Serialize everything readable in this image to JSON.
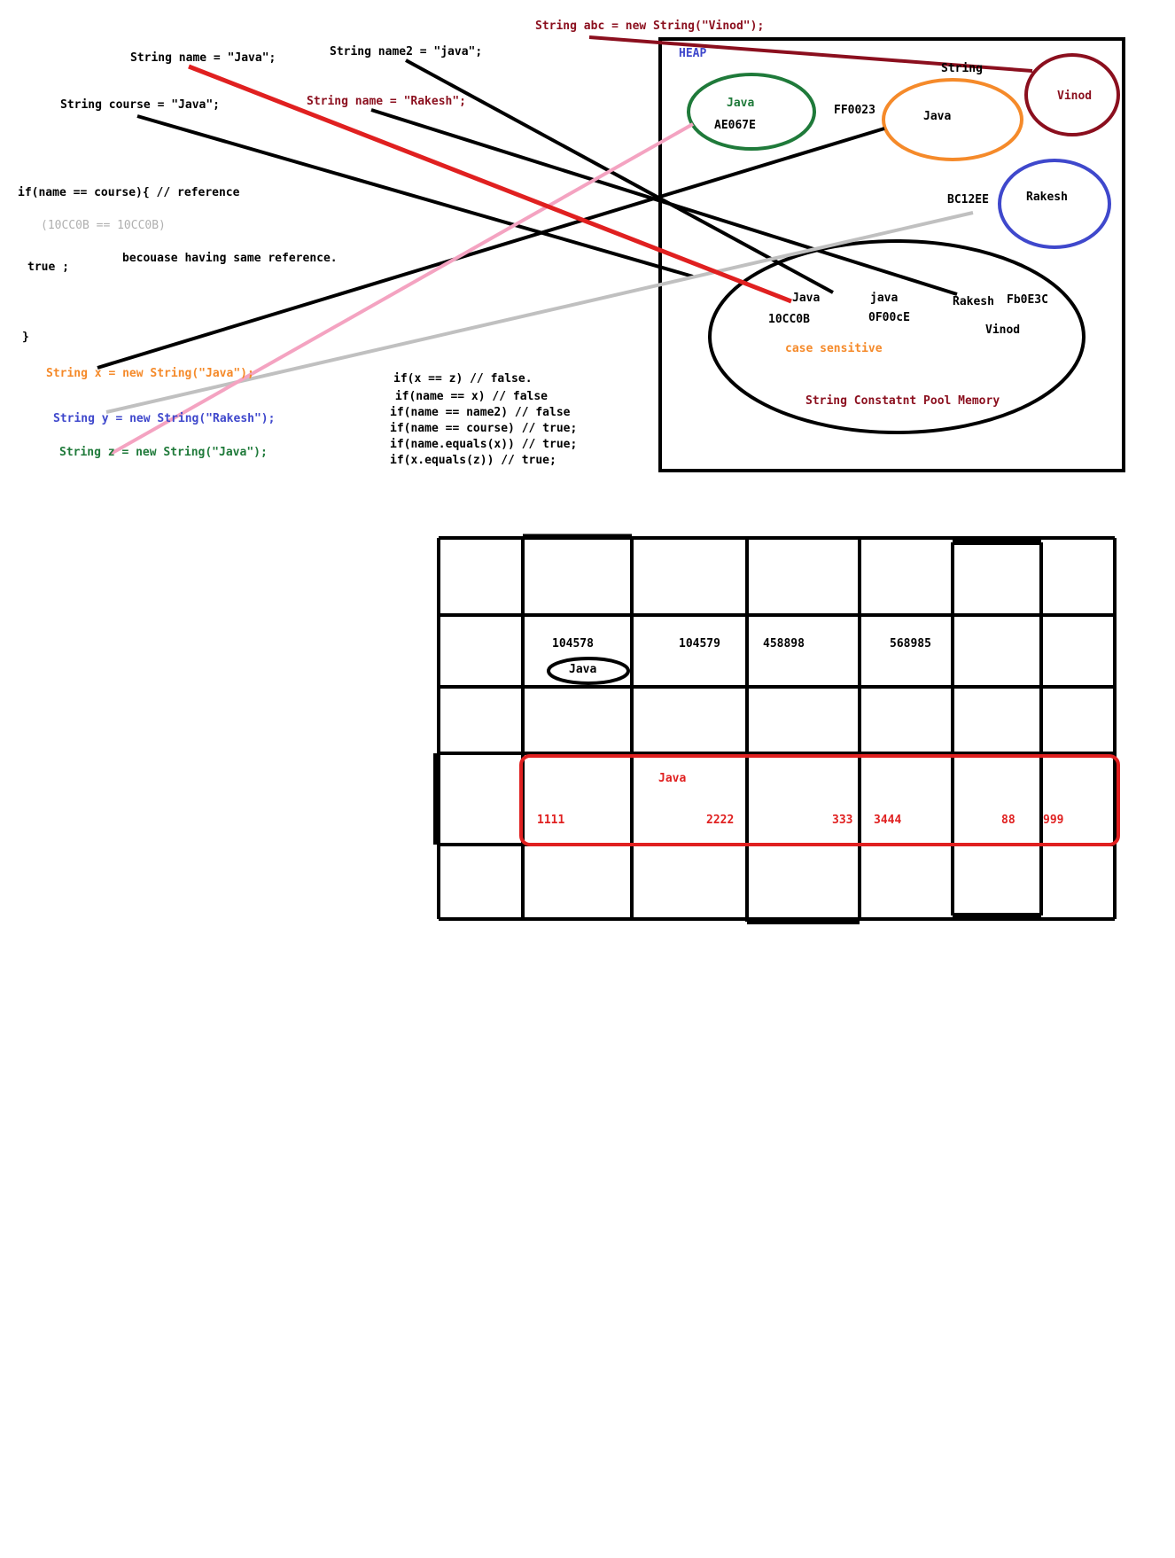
{
  "colors": {
    "black": "#000000",
    "red": "#e02020",
    "darkred": "#8b0f1e",
    "pink": "#f4a3c1",
    "gray": "#c0c0c0",
    "orange": "#f58a2a",
    "blue": "#3f48cc",
    "green": "#1f7a3a",
    "lightgray": "#b0b0b0"
  },
  "code": {
    "abc_decl": "String abc = new String(\"Vinod\");",
    "name_decl": "String name = \"Java\";",
    "name2_decl": "String name2 = \"java\";",
    "course_decl": "String course = \"Java\";",
    "name_rakesh_decl": "String name = \"Rakesh\";",
    "if_stmt": "if(name == course){  // reference",
    "ref_compare": "(10CC0B == 10CC0B)",
    "true_stmt": "true ;",
    "because_note": "becouase having same reference.",
    "close_brace": "}",
    "x_decl": "String x = new String(\"Java\");",
    "y_decl": "String y = new String(\"Rakesh\");",
    "z_decl": "String z = new String(\"Java\");"
  },
  "comparisons": [
    "if(x == z) // false.",
    " if(name == x) // false",
    "if(name == name2) // false",
    "if(name == course) // true;",
    "if(name.equals(x)) // true;",
    "if(x.equals(z)) // true;"
  ],
  "heap": {
    "title": "HEAP",
    "string_label": "String",
    "green_obj": {
      "value": "Java",
      "address": "AE067E"
    },
    "orange_obj": {
      "value": "Java",
      "address": "FF0023"
    },
    "vinod_obj": {
      "value": "Vinod"
    },
    "rakesh_obj": {
      "value": "Rakesh",
      "address": "BC12EE"
    },
    "pool": {
      "title": "String Constatnt Pool Memory",
      "note": "case sensitive",
      "java_upper": "Java",
      "java_upper_addr": "10CC0B",
      "java_lower": "java",
      "java_lower_addr": "0F00cE",
      "rakesh": "Rakesh",
      "rakesh_addr": "Fb0E3C",
      "vinod": "Vinod"
    }
  },
  "grid": {
    "addresses": [
      "104578",
      "104579",
      "458898",
      "568985"
    ],
    "circled_value": "Java",
    "red_box_value": "Java",
    "red_numbers": [
      "1111",
      "2222",
      "333",
      "3444",
      "88",
      "999"
    ]
  }
}
